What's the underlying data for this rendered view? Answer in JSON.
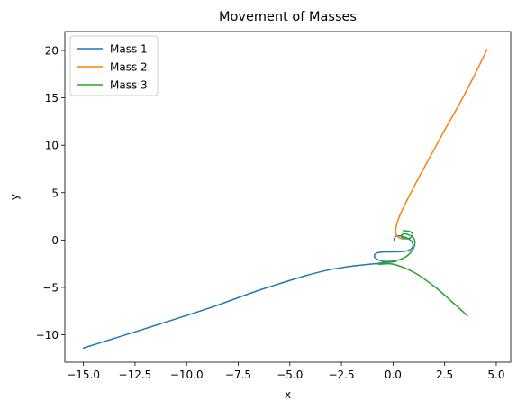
{
  "chart_data": {
    "type": "line",
    "title": "Movement of Masses",
    "xlabel": "x",
    "ylabel": "y",
    "xlim": [
      -15.9,
      5.7
    ],
    "ylim": [
      -12.9,
      22.0
    ],
    "grid": false,
    "legend_position": "top-left",
    "xticks": [
      -15.0,
      -12.5,
      -10.0,
      -7.5,
      -5.0,
      -2.5,
      0.0,
      2.5,
      5.0
    ],
    "xtick_labels": [
      "−15.0",
      "−12.5",
      "−10.0",
      "−7.5",
      "−5.0",
      "−2.5",
      "0.0",
      "2.5",
      "5.0"
    ],
    "yticks": [
      -10,
      -5,
      0,
      5,
      10,
      15,
      20
    ],
    "ytick_labels": [
      "−10",
      "−5",
      "0",
      "5",
      "10",
      "15",
      "20"
    ],
    "series": [
      {
        "name": "Mass 1",
        "color": "#1f77b4",
        "x": [
          0.05,
          0.08,
          0.15,
          0.25,
          0.4,
          0.6,
          0.8,
          0.95,
          0.95,
          0.8,
          0.5,
          0.1,
          -0.3,
          -0.65,
          -0.85,
          -0.9,
          -0.75,
          -0.45,
          0.0,
          -3.0,
          -6.0,
          -9.0,
          -12.0,
          -15.0
        ],
        "y": [
          0.0,
          0.25,
          0.4,
          0.45,
          0.42,
          0.3,
          0.05,
          -0.35,
          -0.75,
          -1.05,
          -1.2,
          -1.25,
          -1.25,
          -1.3,
          -1.45,
          -1.75,
          -2.05,
          -2.25,
          -2.3,
          -3.1,
          -4.95,
          -7.25,
          -9.35,
          -11.4
        ]
      },
      {
        "name": "Mass 2",
        "color": "#ff7f0e",
        "x": [
          0.5,
          0.3,
          0.15,
          0.15,
          0.35,
          0.75,
          1.25,
          1.85,
          2.5,
          3.2,
          3.9,
          4.55
        ],
        "y": [
          0.1,
          0.25,
          0.6,
          1.4,
          2.7,
          4.5,
          6.6,
          9.0,
          11.6,
          14.3,
          17.2,
          20.1
        ]
      },
      {
        "name": "Mass 3",
        "color": "#2ca02c",
        "x": [
          0.5,
          0.8,
          0.95,
          0.92,
          0.75,
          0.55,
          0.4,
          0.45,
          0.7,
          1.0,
          1.05,
          0.9,
          0.6,
          0.2,
          -0.2,
          -0.55,
          -0.75,
          -0.6,
          0.0,
          1.0,
          2.0,
          3.0,
          3.6
        ],
        "y": [
          1.0,
          0.9,
          0.65,
          0.35,
          0.15,
          0.15,
          0.35,
          0.6,
          0.6,
          0.2,
          -0.5,
          -1.2,
          -1.8,
          -2.15,
          -2.3,
          -2.4,
          -2.5,
          -2.55,
          -2.55,
          -3.4,
          -4.9,
          -6.8,
          -8.0
        ]
      }
    ]
  }
}
